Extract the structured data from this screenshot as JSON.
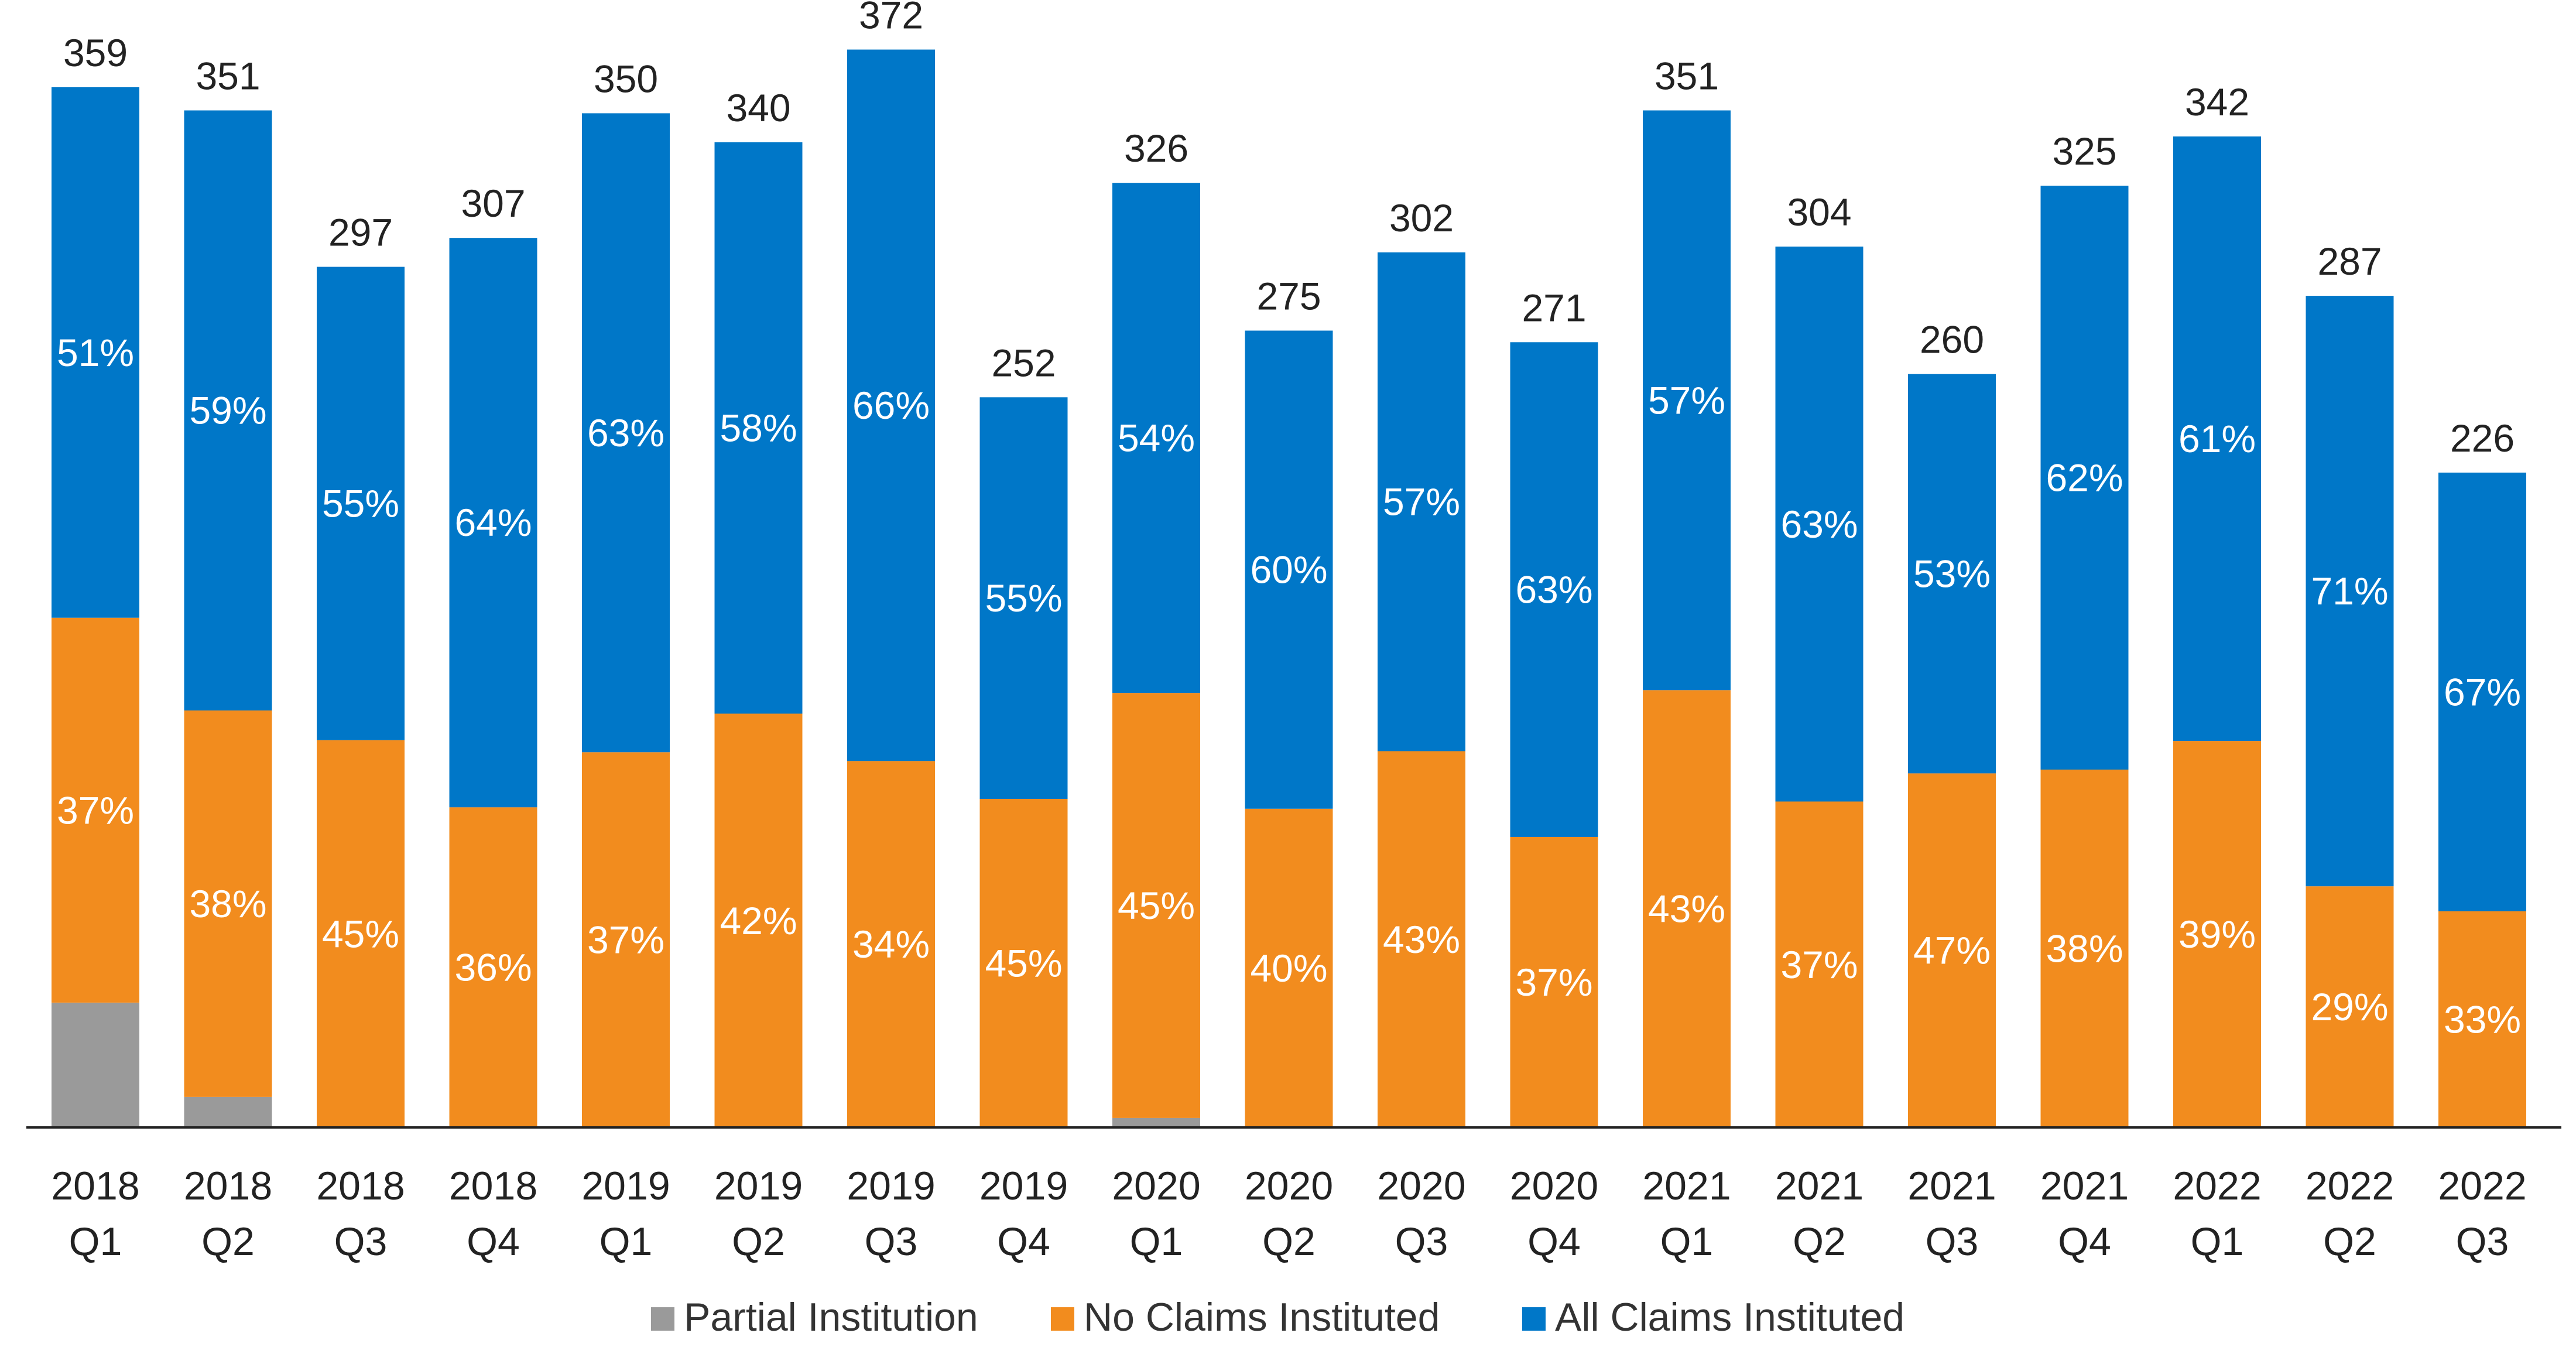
{
  "chart_data": {
    "type": "bar",
    "stacked": true,
    "categories": [
      [
        "2018",
        "Q1"
      ],
      [
        "2018",
        "Q2"
      ],
      [
        "2018",
        "Q3"
      ],
      [
        "2018",
        "Q4"
      ],
      [
        "2019",
        "Q1"
      ],
      [
        "2019",
        "Q2"
      ],
      [
        "2019",
        "Q3"
      ],
      [
        "2019",
        "Q4"
      ],
      [
        "2020",
        "Q1"
      ],
      [
        "2020",
        "Q2"
      ],
      [
        "2020",
        "Q3"
      ],
      [
        "2020",
        "Q4"
      ],
      [
        "2021",
        "Q1"
      ],
      [
        "2021",
        "Q2"
      ],
      [
        "2021",
        "Q3"
      ],
      [
        "2021",
        "Q4"
      ],
      [
        "2022",
        "Q1"
      ],
      [
        "2022",
        "Q2"
      ],
      [
        "2022",
        "Q3"
      ]
    ],
    "totals": [
      359,
      351,
      297,
      307,
      350,
      340,
      372,
      252,
      326,
      275,
      302,
      271,
      351,
      304,
      260,
      325,
      342,
      287,
      226
    ],
    "series": [
      {
        "name": "Partial Institution",
        "color": "#9a9a9a",
        "percent": [
          12,
          3,
          0,
          0,
          0,
          0,
          0,
          0,
          1,
          0,
          0,
          0,
          0,
          0,
          0,
          0,
          0,
          0,
          0
        ],
        "labels": [
          "",
          "",
          "",
          "",
          "",
          "",
          "",
          "",
          "",
          "",
          "",
          "",
          "",
          "",
          "",
          "",
          "",
          "",
          ""
        ]
      },
      {
        "name": "No Claims Instituted",
        "color": "#f28c1e",
        "percent": [
          37,
          38,
          45,
          36,
          37,
          42,
          34,
          45,
          45,
          40,
          43,
          37,
          43,
          37,
          47,
          38,
          39,
          29,
          33
        ],
        "labels": [
          "37%",
          "38%",
          "45%",
          "36%",
          "37%",
          "42%",
          "34%",
          "45%",
          "45%",
          "40%",
          "43%",
          "37%",
          "43%",
          "37%",
          "47%",
          "38%",
          "39%",
          "29%",
          "33%"
        ]
      },
      {
        "name": "All Claims Instituted",
        "color": "#0077c8",
        "percent": [
          51,
          59,
          55,
          64,
          63,
          58,
          66,
          55,
          54,
          60,
          57,
          63,
          57,
          63,
          53,
          62,
          61,
          71,
          67
        ],
        "labels": [
          "51%",
          "59%",
          "55%",
          "64%",
          "63%",
          "58%",
          "66%",
          "55%",
          "54%",
          "60%",
          "57%",
          "63%",
          "57%",
          "63%",
          "53%",
          "62%",
          "61%",
          "71%",
          "67%"
        ]
      }
    ],
    "ylim": [
      0,
      380
    ],
    "grid": false,
    "legend_position": "bottom"
  }
}
